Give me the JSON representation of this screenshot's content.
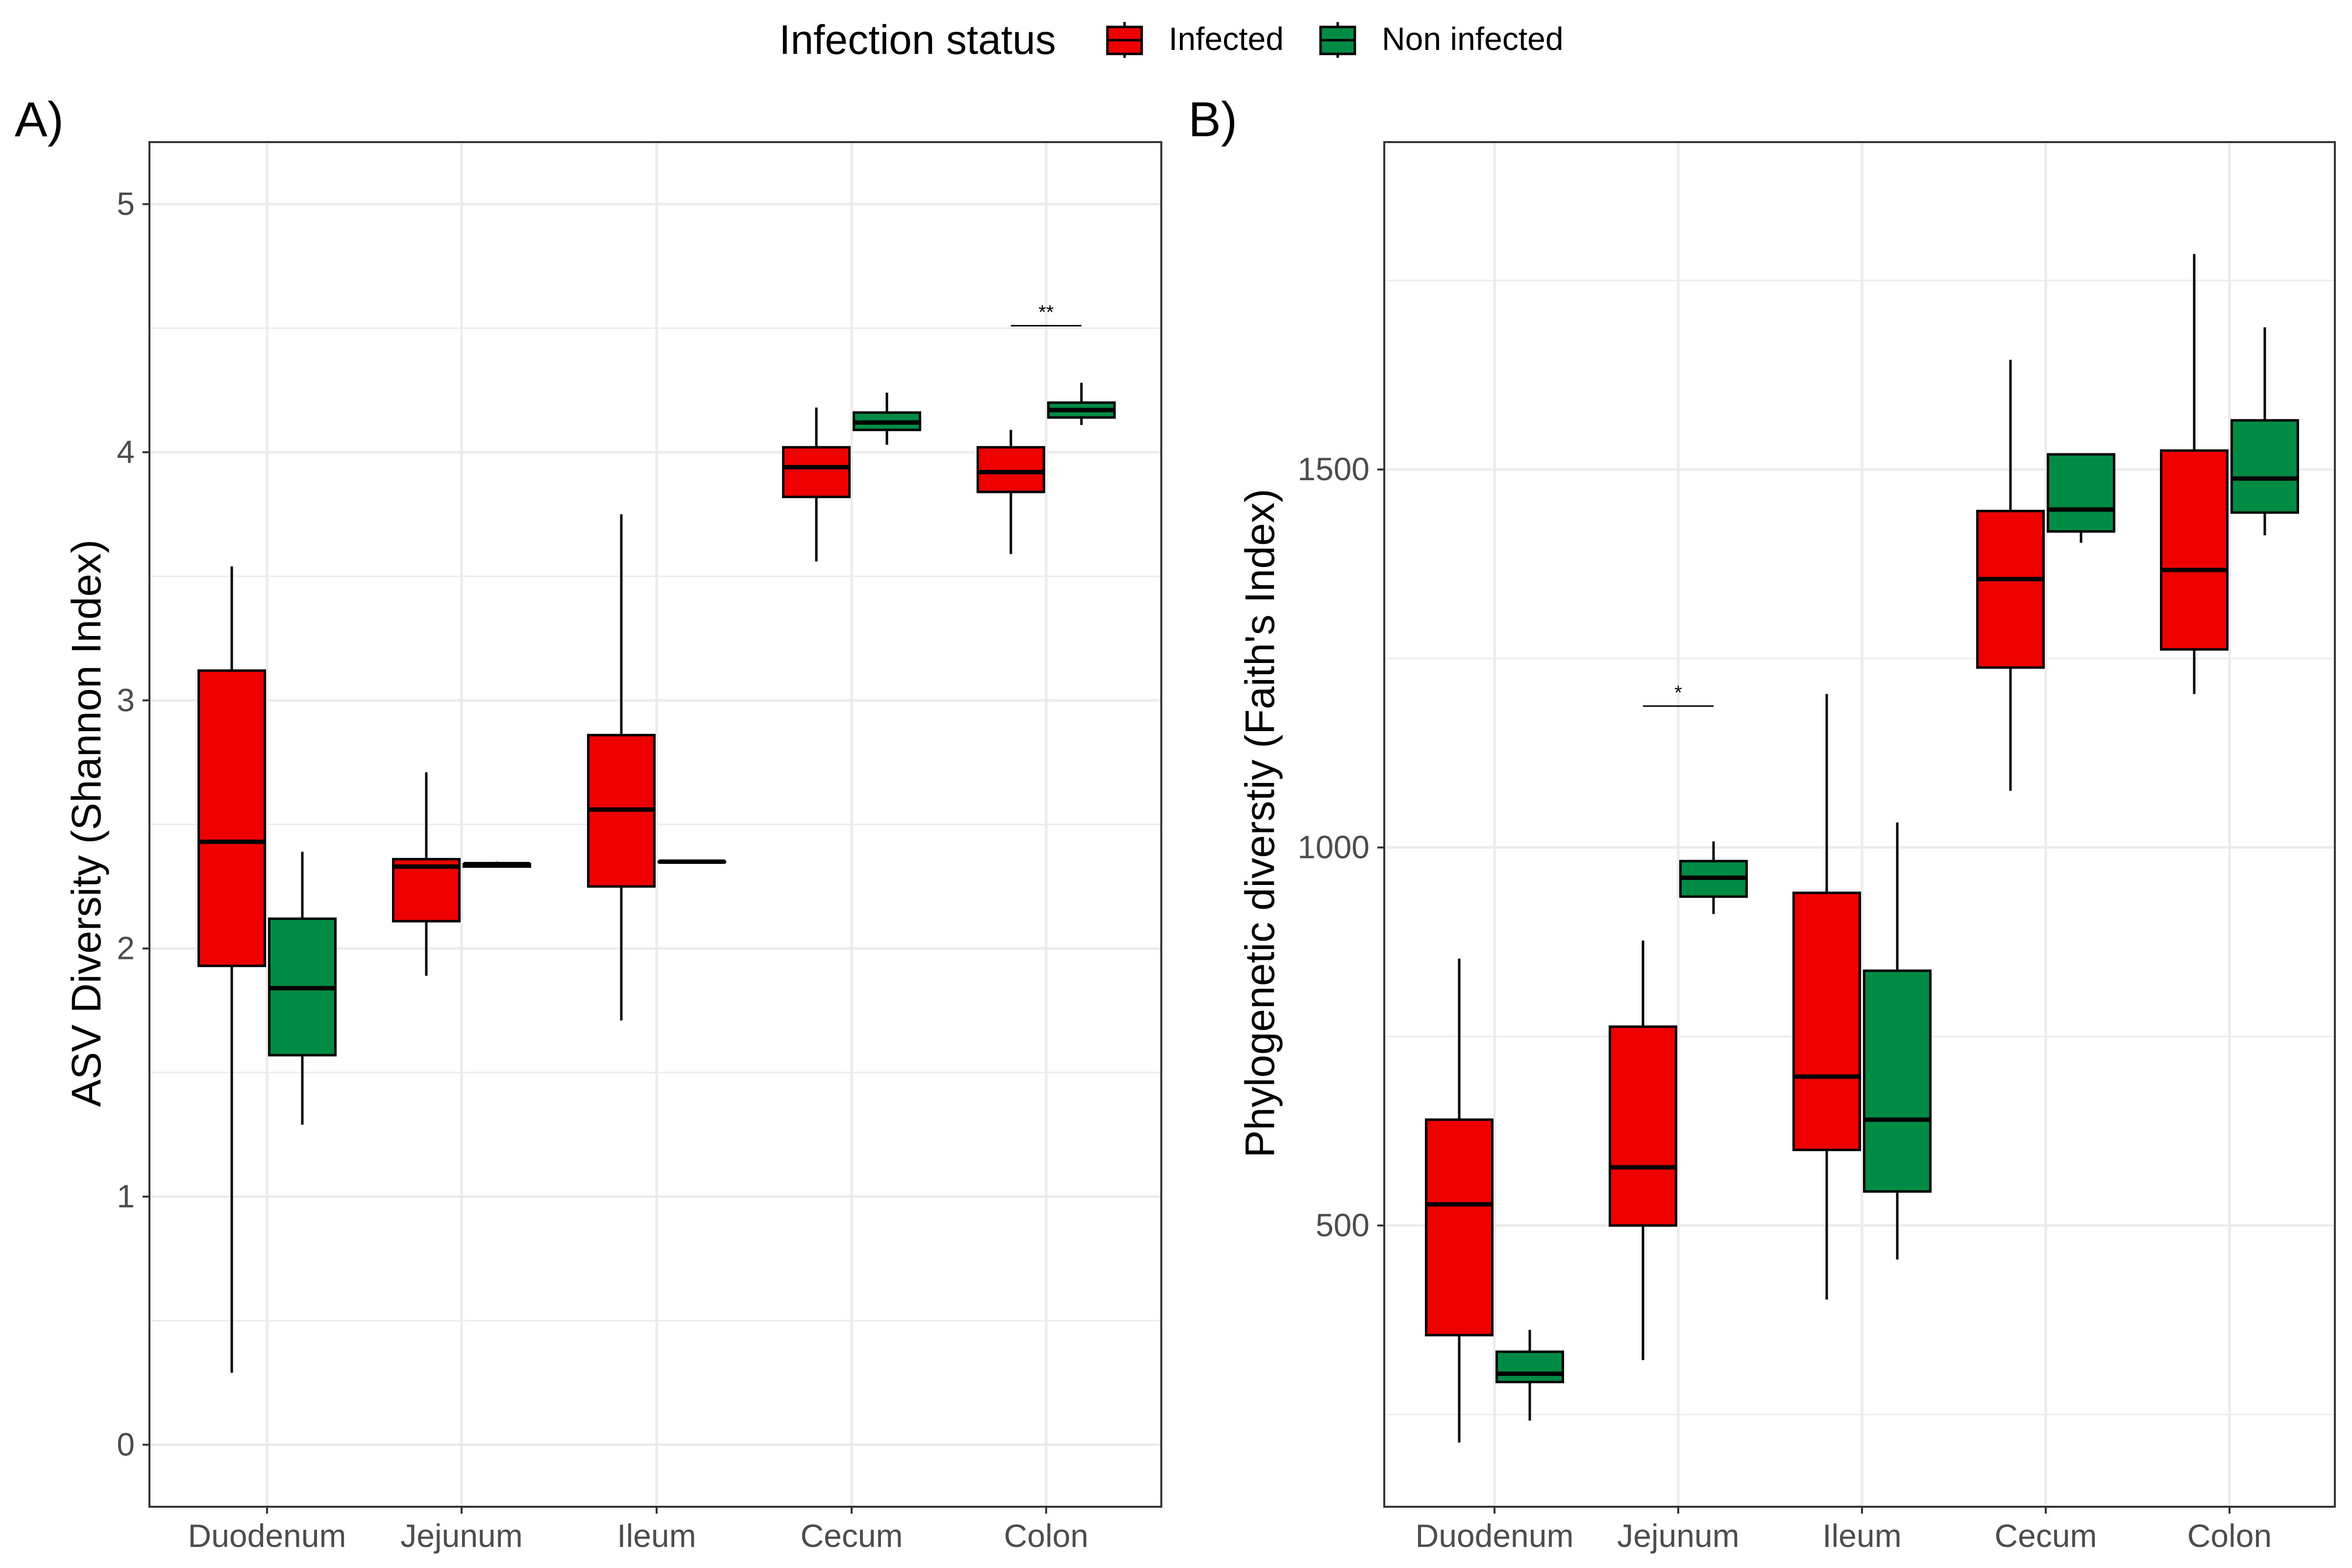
{
  "legend": {
    "title": "Infection status",
    "items": [
      {
        "label": "Infected",
        "color": "#EE0000"
      },
      {
        "label": "Non infected",
        "color": "#008B45"
      }
    ],
    "position": "top"
  },
  "colors": {
    "Infected": "#EE0000",
    "Non infected": "#008B45",
    "grid": "#EBEBEB",
    "tick_text": "#4D4D4D"
  },
  "chart_data": [
    {
      "panel": "A)",
      "type": "boxplot",
      "ylabel": "ASV Diversity (Shannon Index)",
      "xlabel": "",
      "categories": [
        "Duodenum",
        "Jejunum",
        "Ileum",
        "Cecum",
        "Colon"
      ],
      "ylim": [
        -0.25,
        5.25
      ],
      "yticks": [
        0,
        1,
        2,
        3,
        4,
        5
      ],
      "grid": true,
      "series": [
        {
          "name": "Infected",
          "boxes": [
            {
              "min": 0.29,
              "q1": 1.93,
              "median": 2.43,
              "q3": 3.12,
              "max": 3.54
            },
            {
              "min": 1.89,
              "q1": 2.11,
              "median": 2.33,
              "q3": 2.36,
              "max": 2.71
            },
            {
              "min": 1.71,
              "q1": 2.25,
              "median": 2.56,
              "q3": 2.86,
              "max": 3.75
            },
            {
              "min": 3.56,
              "q1": 3.82,
              "median": 3.94,
              "q3": 4.02,
              "max": 4.18
            },
            {
              "min": 3.59,
              "q1": 3.84,
              "median": 3.92,
              "q3": 4.02,
              "max": 4.09
            }
          ]
        },
        {
          "name": "Non infected",
          "boxes": [
            {
              "min": 1.29,
              "q1": 1.57,
              "median": 1.84,
              "q3": 2.12,
              "max": 2.39
            },
            {
              "min": 2.33,
              "q1": 2.33,
              "median": 2.34,
              "q3": 2.34,
              "max": 2.35
            },
            {
              "min": 2.35,
              "q1": 2.35,
              "median": 2.35,
              "q3": 2.35,
              "max": 2.35
            },
            {
              "min": 4.03,
              "q1": 4.09,
              "median": 4.12,
              "q3": 4.16,
              "max": 4.24
            },
            {
              "min": 4.11,
              "q1": 4.14,
              "median": 4.17,
              "q3": 4.2,
              "max": 4.28
            }
          ]
        }
      ],
      "annotations": [
        {
          "category": "Colon",
          "label": "**",
          "y": 4.51
        }
      ]
    },
    {
      "panel": "B)",
      "type": "boxplot",
      "ylabel": "Phylogenetic diverstiy (Faith's Index)",
      "xlabel": "",
      "categories": [
        "Duodenum",
        "Jejunum",
        "Ileum",
        "Cecum",
        "Colon"
      ],
      "ylim": [
        128,
        1933
      ],
      "yticks": [
        500,
        1000,
        1500
      ],
      "minor_gridlines": [
        250,
        750,
        1250,
        1750
      ],
      "grid": true,
      "series": [
        {
          "name": "Infected",
          "boxes": [
            {
              "min": 213,
              "q1": 355,
              "median": 528,
              "q3": 640,
              "max": 853
            },
            {
              "min": 322,
              "q1": 500,
              "median": 577,
              "q3": 763,
              "max": 877
            },
            {
              "min": 402,
              "q1": 600,
              "median": 697,
              "q3": 940,
              "max": 1203
            },
            {
              "min": 1075,
              "q1": 1238,
              "median": 1355,
              "q3": 1445,
              "max": 1645
            },
            {
              "min": 1203,
              "q1": 1262,
              "median": 1367,
              "q3": 1525,
              "max": 1785
            }
          ]
        },
        {
          "name": "Non infected",
          "boxes": [
            {
              "min": 242,
              "q1": 293,
              "median": 304,
              "q3": 333,
              "max": 362
            },
            {
              "min": 912,
              "q1": 935,
              "median": 960,
              "q3": 982,
              "max": 1008
            },
            {
              "min": 455,
              "q1": 545,
              "median": 640,
              "q3": 837,
              "max": 1033
            },
            {
              "min": 1403,
              "q1": 1418,
              "median": 1447,
              "q3": 1520,
              "max": 1520
            },
            {
              "min": 1413,
              "q1": 1443,
              "median": 1488,
              "q3": 1565,
              "max": 1688
            }
          ]
        }
      ],
      "annotations": [
        {
          "category": "Jejunum",
          "label": "*",
          "y": 1187
        }
      ]
    }
  ]
}
